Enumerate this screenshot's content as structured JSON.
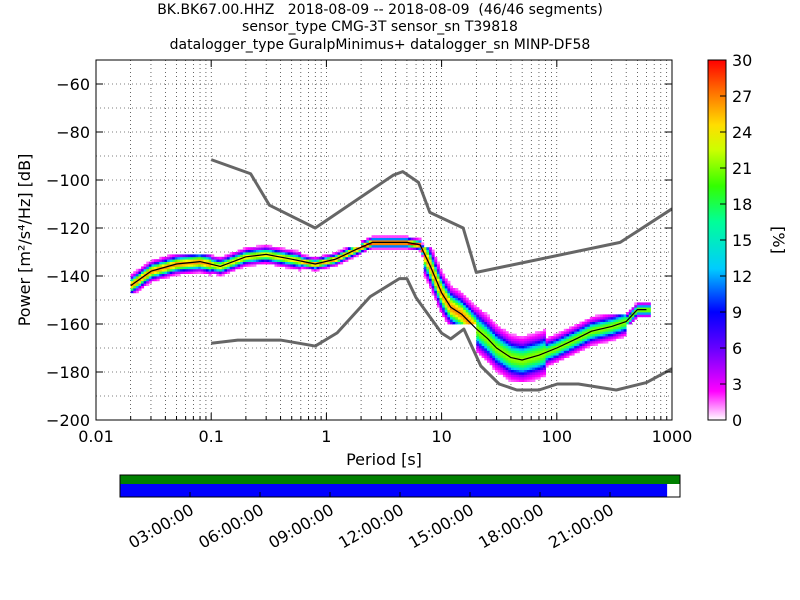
{
  "chart_data": {
    "type": "heatmap",
    "title_lines": [
      "BK.BK67.00.HHZ   2018-08-09 -- 2018-08-09  (46/46 segments)",
      "sensor_type CMG-3T sensor_sn T39818",
      "datalogger_type GuralpMinimus+ datalogger_sn MINP-DF58"
    ],
    "xlabel": "Period [s]",
    "ylabel": "Power [m²/s⁴/Hz] [dB]",
    "x_scale": "log",
    "xlim": [
      0.01,
      1000
    ],
    "ylim": [
      -200,
      -50
    ],
    "x_ticks": [
      0.01,
      0.1,
      1,
      10,
      100,
      1000
    ],
    "x_tick_labels": [
      "0.01",
      "0.1",
      "1",
      "10",
      "100",
      "1000"
    ],
    "y_ticks": [
      -200,
      -180,
      -160,
      -140,
      -120,
      -100,
      -80,
      -60
    ],
    "y_tick_labels": [
      "−200",
      "−180",
      "−160",
      "−140",
      "−120",
      "−100",
      "−80",
      "−60"
    ],
    "grid": true,
    "colorbar": {
      "label": "[%]",
      "range": [
        0,
        30
      ],
      "ticks": [
        0,
        3,
        6,
        9,
        12,
        15,
        18,
        21,
        24,
        27,
        30
      ],
      "tick_labels": [
        "0",
        "3",
        "6",
        "9",
        "12",
        "15",
        "18",
        "21",
        "24",
        "27",
        "30"
      ],
      "colormap": [
        "#ffffff",
        "#ff00ff",
        "#9900ff",
        "#0000ff",
        "#00ccff",
        "#00ff80",
        "#66ff00",
        "#ffff00",
        "#ff9900",
        "#ff0000"
      ]
    },
    "noise_models": {
      "color": "#666666",
      "nhnm": {
        "name": "NHNM",
        "x": [
          0.1,
          0.22,
          0.32,
          0.8,
          3.8,
          4.6,
          6.3,
          7.9,
          15.4,
          20,
          354.8,
          1000
        ],
        "y": [
          -91.5,
          -97.4,
          -110.5,
          -120,
          -98,
          -96.5,
          -101,
          -113.5,
          -120,
          -138.5,
          -126,
          -112
        ]
      },
      "nlnm": {
        "name": "NLNM",
        "x": [
          0.1,
          0.17,
          0.4,
          0.8,
          1.24,
          2.4,
          4.3,
          5,
          6,
          10,
          12,
          15.6,
          21.9,
          31.6,
          45,
          70,
          101,
          154,
          328,
          600,
          1000
        ],
        "y": [
          -168,
          -166.7,
          -166.7,
          -169.2,
          -163.7,
          -148.6,
          -141.1,
          -141.1,
          -149,
          -163.8,
          -166.2,
          -162.1,
          -177.5,
          -185,
          -187.5,
          -187.5,
          -185,
          -185,
          -187.5,
          -184.4,
          -178.6
        ]
      }
    },
    "mode_line": {
      "color": "#000000",
      "x": [
        0.02,
        0.03,
        0.05,
        0.08,
        0.12,
        0.2,
        0.3,
        0.5,
        0.8,
        1.2,
        1.8,
        2.5,
        3.5,
        5,
        6.5,
        8,
        10,
        12,
        15,
        20,
        25,
        30,
        40,
        50,
        70,
        100,
        150,
        200,
        300,
        400,
        500,
        600
      ],
      "y": [
        -144,
        -138,
        -135,
        -134,
        -136,
        -132,
        -131,
        -133,
        -135,
        -133,
        -129,
        -126,
        -126,
        -126,
        -127,
        -136,
        -147,
        -153,
        -156,
        -162,
        -166,
        -170,
        -174,
        -175,
        -173,
        -170,
        -166,
        -163,
        -161,
        -159,
        -154,
        -154
      ]
    },
    "histogram_bands": [
      {
        "x_from": 0.02,
        "x_to": 0.1,
        "y": [
          -147,
          -131
        ],
        "peak": 27
      },
      {
        "x_from": 0.1,
        "x_to": 0.6,
        "y": [
          -140,
          -126
        ],
        "peak": 24
      },
      {
        "x_from": 0.6,
        "x_to": 2.0,
        "y": [
          -138,
          -128
        ],
        "peak": 27
      },
      {
        "x_from": 2.0,
        "x_to": 7.0,
        "y": [
          -132,
          -123
        ],
        "peak": 30
      },
      {
        "x_from": 7.0,
        "x_to": 20,
        "y": [
          -160,
          -128
        ],
        "peak": 27
      },
      {
        "x_from": 20,
        "x_to": 80,
        "y": [
          -184,
          -148
        ],
        "peak": 21
      },
      {
        "x_from": 80,
        "x_to": 400,
        "y": [
          -178,
          -156
        ],
        "peak": 21
      },
      {
        "x_from": 400,
        "x_to": 650,
        "y": [
          -160,
          -148
        ],
        "peak": 21
      }
    ],
    "coverage": {
      "time_ticks": [
        "03:00:00",
        "06:00:00",
        "09:00:00",
        "12:00:00",
        "15:00:00",
        "18:00:00",
        "21:00:00"
      ],
      "data_color": "#008000",
      "segment_color": "#0000ff",
      "data_fraction": 1.0,
      "segment_fraction": 0.977
    }
  }
}
